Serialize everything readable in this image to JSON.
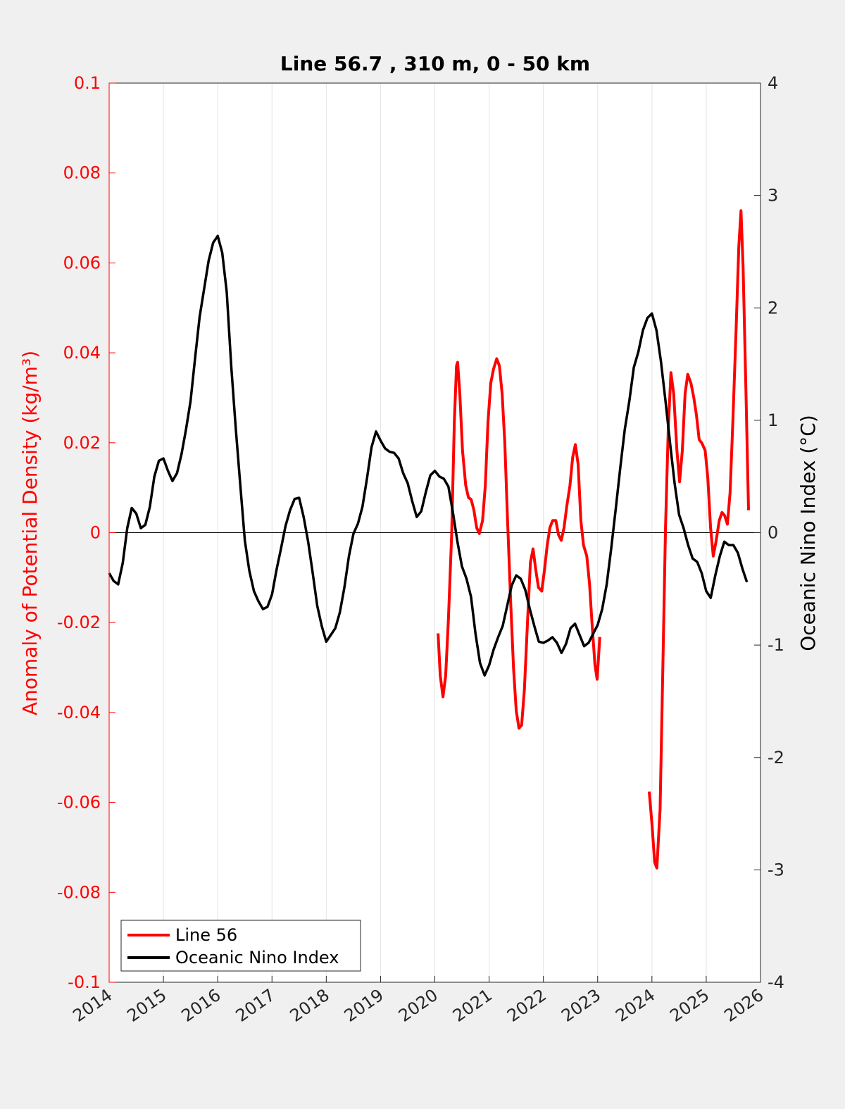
{
  "chart_data": {
    "type": "line",
    "title": "Line 56.7 , 310 m, 0 - 50 km",
    "xlabel": "",
    "ylabel_left": "Anomaly of Potential Density (kg/m³)",
    "ylabel_right": "Oceanic Nino Index (°C)",
    "xlim": [
      2014,
      2026
    ],
    "ylim_left": [
      -0.1,
      0.1
    ],
    "ylim_right": [
      -4,
      4
    ],
    "x_ticks": [
      "2014",
      "2015",
      "2016",
      "2017",
      "2018",
      "2019",
      "2020",
      "2021",
      "2022",
      "2023",
      "2024",
      "2025",
      "2026"
    ],
    "y_ticks_left": [
      "0.1",
      "0.08",
      "0.06",
      "0.04",
      "0.02",
      "0",
      "-0.02",
      "-0.04",
      "-0.06",
      "-0.08",
      "-0.1"
    ],
    "y_ticks_right": [
      "4",
      "3",
      "2",
      "1",
      "0",
      "-1",
      "-2",
      "-3",
      "-4"
    ],
    "grid": "vertical",
    "legend_position": "bottom-left",
    "colors": {
      "line56": "#ff0000",
      "oni": "#000000",
      "left_axis": "#ff0000"
    },
    "series": [
      {
        "name": "Line 56",
        "axis": "left",
        "segments": [
          {
            "x": [
              2020.06,
              2020.1,
              2020.15,
              2020.2,
              2020.25,
              2020.31,
              2020.36,
              2020.4,
              2020.42,
              2020.46,
              2020.51,
              2020.57,
              2020.62,
              2020.67,
              2020.72,
              2020.77,
              2020.82,
              2020.88,
              2020.93,
              2020.98,
              2021.03,
              2021.08,
              2021.14,
              2021.19,
              2021.24,
              2021.29,
              2021.34,
              2021.4,
              2021.45,
              2021.5,
              2021.55,
              2021.6,
              2021.65,
              2021.71,
              2021.76,
              2021.81,
              2021.86,
              2021.91,
              2021.97,
              2022.02,
              2022.07,
              2022.12,
              2022.17,
              2022.23,
              2022.28,
              2022.33,
              2022.38,
              2022.43,
              2022.49,
              2022.54,
              2022.59,
              2022.64,
              2022.69,
              2022.74,
              2022.8,
              2022.85,
              2022.9,
              2022.95,
              2022.99,
              2023.04
            ],
            "y": [
              -0.0224,
              -0.0318,
              -0.0365,
              -0.0318,
              -0.0193,
              -0.0005,
              0.0246,
              0.0371,
              0.0379,
              0.0309,
              0.0183,
              0.0105,
              0.0078,
              0.0074,
              0.005,
              0.0011,
              -0.0002,
              0.0027,
              0.0105,
              0.0246,
              0.0332,
              0.0363,
              0.0387,
              0.0371,
              0.0309,
              0.0199,
              0.0027,
              -0.0161,
              -0.0302,
              -0.0396,
              -0.0435,
              -0.0428,
              -0.0349,
              -0.0193,
              -0.0067,
              -0.0036,
              -0.0083,
              -0.0122,
              -0.013,
              -0.0083,
              -0.0028,
              0.0011,
              0.0027,
              0.0027,
              -0.0005,
              -0.0017,
              0.0011,
              0.0058,
              0.0105,
              0.0168,
              0.0196,
              0.0152,
              0.0027,
              -0.0028,
              -0.0052,
              -0.0114,
              -0.0208,
              -0.0294,
              -0.0326,
              -0.0232
            ]
          },
          {
            "x": [
              2023.95,
              2024.0,
              2024.05,
              2024.09,
              2024.15,
              2024.2,
              2024.25,
              2024.3,
              2024.35,
              2024.4,
              2024.46,
              2024.51,
              2024.56,
              2024.61,
              2024.66,
              2024.72,
              2024.77,
              2024.82,
              2024.87,
              2024.92,
              2024.98,
              2025.03,
              2025.08,
              2025.13,
              2025.18,
              2025.24,
              2025.29,
              2025.34,
              2025.39,
              2025.44,
              2025.49,
              2025.55,
              2025.6,
              2025.64,
              2025.68,
              2025.73,
              2025.78
            ],
            "y": [
              -0.0576,
              -0.0647,
              -0.0733,
              -0.0746,
              -0.0616,
              -0.0302,
              0.0011,
              0.023,
              0.0356,
              0.0309,
              0.0183,
              0.0113,
              0.0183,
              0.0309,
              0.0352,
              0.0332,
              0.0301,
              0.0262,
              0.0207,
              0.0199,
              0.0183,
              0.0121,
              0.0011,
              -0.0052,
              -0.002,
              0.0027,
              0.0045,
              0.0038,
              0.0019,
              0.0089,
              0.0246,
              0.045,
              0.0637,
              0.0716,
              0.059,
              0.0324,
              0.005
            ]
          }
        ]
      },
      {
        "name": "Oceanic Nino Index",
        "axis": "right",
        "x_start": 2014.0,
        "x_step_months": 1,
        "y": [
          -0.36,
          -0.43,
          -0.46,
          -0.27,
          0.04,
          0.22,
          0.17,
          0.04,
          0.07,
          0.23,
          0.5,
          0.64,
          0.66,
          0.55,
          0.46,
          0.53,
          0.7,
          0.92,
          1.17,
          1.55,
          1.92,
          2.17,
          2.42,
          2.58,
          2.64,
          2.49,
          2.14,
          1.48,
          0.92,
          0.42,
          -0.07,
          -0.34,
          -0.52,
          -0.61,
          -0.68,
          -0.66,
          -0.55,
          -0.33,
          -0.14,
          0.06,
          0.2,
          0.3,
          0.31,
          0.14,
          -0.08,
          -0.36,
          -0.65,
          -0.83,
          -0.97,
          -0.91,
          -0.85,
          -0.71,
          -0.49,
          -0.21,
          -0.01,
          0.08,
          0.23,
          0.48,
          0.76,
          0.9,
          0.82,
          0.75,
          0.72,
          0.71,
          0.66,
          0.53,
          0.44,
          0.28,
          0.14,
          0.19,
          0.36,
          0.51,
          0.55,
          0.5,
          0.48,
          0.41,
          0.18,
          -0.08,
          -0.3,
          -0.41,
          -0.57,
          -0.9,
          -1.16,
          -1.27,
          -1.18,
          -1.04,
          -0.93,
          -0.83,
          -0.65,
          -0.47,
          -0.38,
          -0.41,
          -0.51,
          -0.68,
          -0.83,
          -0.97,
          -0.98,
          -0.96,
          -0.93,
          -0.98,
          -1.07,
          -0.99,
          -0.85,
          -0.81,
          -0.91,
          -1.01,
          -0.98,
          -0.9,
          -0.82,
          -0.68,
          -0.46,
          -0.14,
          0.21,
          0.58,
          0.92,
          1.17,
          1.47,
          1.61,
          1.8,
          1.91,
          1.95,
          1.8,
          1.52,
          1.17,
          0.8,
          0.44,
          0.16,
          0.04,
          -0.11,
          -0.23,
          -0.26,
          -0.36,
          -0.52,
          -0.58,
          -0.38,
          -0.21,
          -0.08,
          -0.11,
          -0.11,
          -0.18,
          -0.32,
          -0.44
        ]
      }
    ]
  }
}
